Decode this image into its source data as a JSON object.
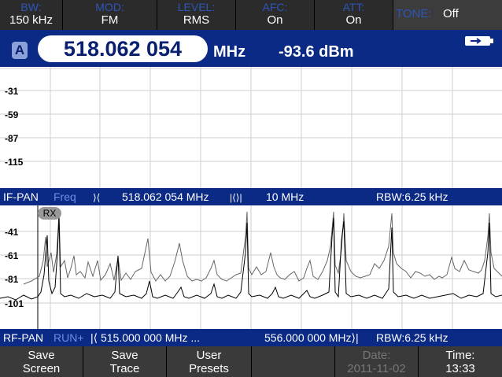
{
  "top_bar": [
    {
      "label": "BW:",
      "value": "150 kHz"
    },
    {
      "label": "MOD:",
      "value": "FM"
    },
    {
      "label": "LEVEL:",
      "value": "RMS"
    },
    {
      "label": "AFC:",
      "value": "On"
    },
    {
      "label": "ATT:",
      "value": "On"
    }
  ],
  "tone": {
    "label": "TONE:",
    "value": "Off"
  },
  "tuner": {
    "channel": "A",
    "frequency": "518.062 054",
    "unit": "MHz",
    "level": "-93.6 dBm"
  },
  "if_pan": {
    "y_labels": [
      "-31",
      "-59",
      "-87",
      "-115"
    ],
    "info": {
      "name": "IF-PAN",
      "mode": "Freq",
      "icon1": "⟩⟨",
      "center": "518.062 054 MHz",
      "icon2": "|⟨⟩|",
      "span": "10 MHz",
      "rbw": "RBW:6.25 kHz"
    }
  },
  "rf_pan": {
    "y_labels": [
      "-41",
      "-61",
      "-81",
      "-101"
    ],
    "marker": "RX",
    "info": {
      "name": "RF-PAN",
      "mode": "RUN+",
      "start": "|⟨ 515.000 000 MHz ...",
      "stop": "556.000 000 MHz⟩|",
      "rbw": "RBW:6.25 kHz"
    }
  },
  "softkeys": [
    {
      "line1": "Save",
      "line2": "Screen",
      "enabled": true
    },
    {
      "line1": "Save",
      "line2": "Trace",
      "enabled": true
    },
    {
      "line1": "User",
      "line2": "Presets",
      "enabled": true
    },
    {
      "line1": "",
      "line2": "",
      "enabled": true
    },
    {
      "line1": "Date:",
      "line2": "2011-11-02",
      "enabled": false
    },
    {
      "line1": "Time:",
      "line2": "13:33",
      "enabled": true
    }
  ],
  "colors": {
    "accent_blue": "#0a2a86",
    "label_blue": "#2d55b8",
    "grid": "#cfcfcf",
    "trace_max": "#666666",
    "trace_live": "#000000"
  }
}
